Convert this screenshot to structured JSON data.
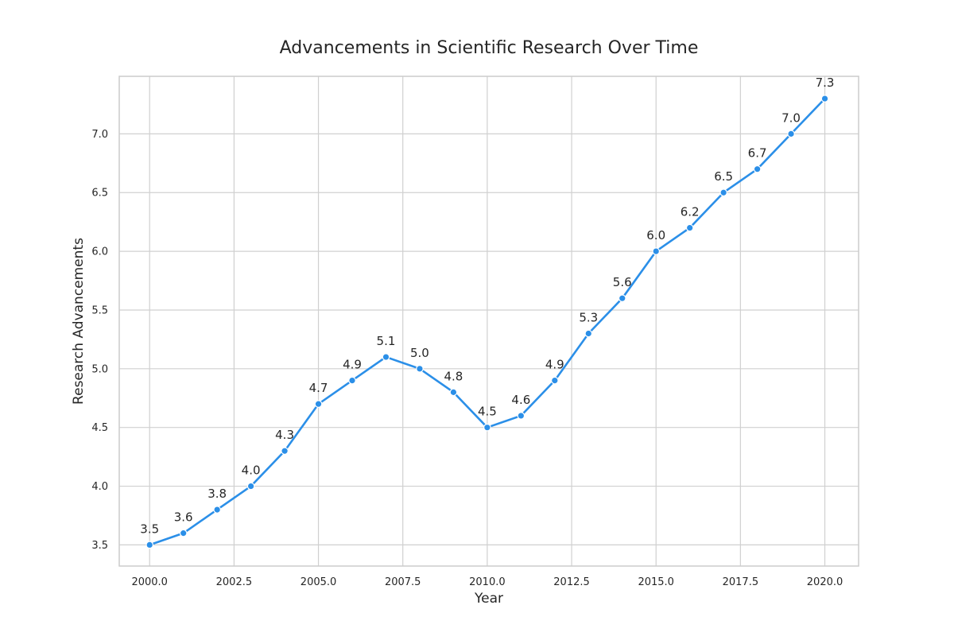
{
  "chart_data": {
    "type": "line",
    "title": "Advancements in Scientific Research Over Time",
    "xlabel": "Year",
    "ylabel": "Research Advancements",
    "xlim": [
      1999.1,
      2021.0
    ],
    "ylim": [
      3.32,
      7.49
    ],
    "x_ticks": [
      2000.0,
      2002.5,
      2005.0,
      2007.5,
      2010.0,
      2012.5,
      2015.0,
      2017.5,
      2020.0
    ],
    "x_tick_labels": [
      "2000.0",
      "2002.5",
      "2005.0",
      "2007.5",
      "2010.0",
      "2012.5",
      "2015.0",
      "2017.5",
      "2020.0"
    ],
    "y_ticks": [
      3.5,
      4.0,
      4.5,
      5.0,
      5.5,
      6.0,
      6.5,
      7.0
    ],
    "y_tick_labels": [
      "3.5",
      "4.0",
      "4.5",
      "5.0",
      "5.5",
      "6.0",
      "6.5",
      "7.0"
    ],
    "grid": true,
    "color": "#2b8fe8",
    "x": [
      2000,
      2001,
      2002,
      2003,
      2004,
      2005,
      2006,
      2007,
      2008,
      2009,
      2010,
      2011,
      2012,
      2013,
      2014,
      2015,
      2016,
      2017,
      2018,
      2019,
      2020
    ],
    "values": [
      3.5,
      3.6,
      3.8,
      4.0,
      4.3,
      4.7,
      4.9,
      5.1,
      5.0,
      4.8,
      4.5,
      4.6,
      4.9,
      5.3,
      5.6,
      6.0,
      6.2,
      6.5,
      6.7,
      7.0,
      7.3
    ],
    "data_labels": [
      "3.5",
      "3.6",
      "3.8",
      "4.0",
      "4.3",
      "4.7",
      "4.9",
      "5.1",
      "5.0",
      "4.8",
      "4.5",
      "4.6",
      "4.9",
      "5.3",
      "5.6",
      "6.0",
      "6.2",
      "6.5",
      "6.7",
      "7.0",
      "7.3"
    ]
  }
}
